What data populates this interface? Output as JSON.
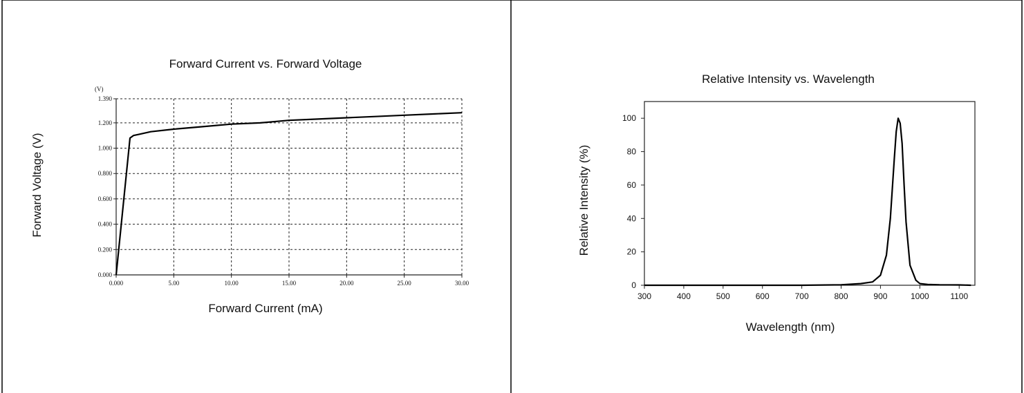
{
  "chart_data": [
    {
      "type": "line",
      "title": "Forward Current vs. Forward Voltage",
      "xlabel": "Forward Current (mA)",
      "ylabel": "Forward Voltage (V)",
      "yunit": "(V)",
      "xlim": [
        0,
        30
      ],
      "ylim": [
        0,
        1.39
      ],
      "grid": true,
      "xticks": [
        "0.000",
        "5.00",
        "10.00",
        "15.00",
        "20.00",
        "25.00",
        "30.00"
      ],
      "xtick_values": [
        0,
        5,
        10,
        15,
        20,
        25,
        30
      ],
      "yticks": [
        "0.000",
        "0.200",
        "0.400",
        "0.600",
        "0.800",
        "1.000",
        "1.200",
        "1.390"
      ],
      "ytick_values": [
        0,
        0.2,
        0.4,
        0.6,
        0.8,
        1.0,
        1.2,
        1.39
      ],
      "series": [
        {
          "x": [
            0.0,
            1.2,
            1.5,
            2.0,
            3.0,
            5.0,
            7.5,
            10.0,
            12.5,
            15.0,
            17.5,
            20.0,
            22.5,
            25.0,
            27.5,
            30.0
          ],
          "y": [
            0.0,
            1.08,
            1.1,
            1.11,
            1.13,
            1.15,
            1.17,
            1.19,
            1.2,
            1.22,
            1.23,
            1.24,
            1.25,
            1.26,
            1.27,
            1.28
          ]
        }
      ]
    },
    {
      "type": "line",
      "title": "Relative Intensity vs. Wavelength",
      "xlabel": "Wavelength (nm)",
      "ylabel": "Relative Intensity (%)",
      "xlim": [
        300,
        1140
      ],
      "ylim": [
        0,
        110
      ],
      "grid": false,
      "xticks": [
        "300",
        "400",
        "500",
        "600",
        "700",
        "800",
        "900",
        "1000",
        "1100"
      ],
      "xtick_values": [
        300,
        400,
        500,
        600,
        700,
        800,
        900,
        1000,
        1100
      ],
      "yticks": [
        "0",
        "20",
        "40",
        "60",
        "80",
        "100"
      ],
      "ytick_values": [
        0,
        20,
        40,
        60,
        80,
        100
      ],
      "series": [
        {
          "x": [
            300,
            500,
            700,
            800,
            850,
            880,
            900,
            915,
            925,
            935,
            940,
            945,
            950,
            955,
            960,
            965,
            975,
            990,
            1000,
            1020,
            1050,
            1100,
            1130
          ],
          "y": [
            0,
            0,
            0,
            0.3,
            1,
            2,
            6,
            18,
            40,
            75,
            92,
            100,
            97,
            85,
            60,
            38,
            12,
            3,
            1,
            0.5,
            0.3,
            0.2,
            0
          ]
        }
      ]
    }
  ]
}
